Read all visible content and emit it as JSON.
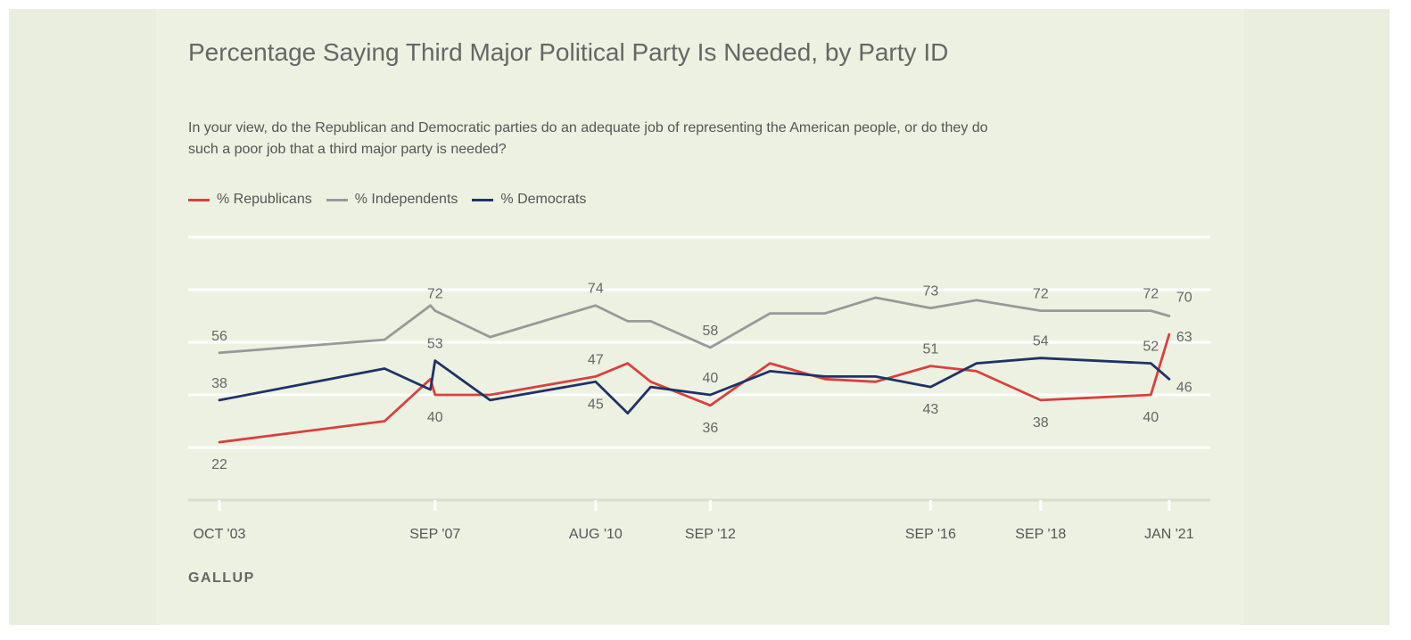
{
  "chart_data": {
    "type": "line",
    "title": "Percentage Saying Third Major Political Party Is Needed, by Party ID",
    "subtitle": "In your view, do the Republican and Democratic parties do an adequate job of representing the American people, or do they do such a poor job that a third major party is needed?",
    "source": "GALLUP",
    "ylim": [
      0,
      100
    ],
    "xlim": [
      "2003-10",
      "2021-02"
    ],
    "grid": true,
    "legend_position": "top-left",
    "x_ticks": [
      {
        "date": "2003-10",
        "label": "OCT '03"
      },
      {
        "date": "2007-09",
        "label": "SEP '07"
      },
      {
        "date": "2010-08",
        "label": "AUG '10"
      },
      {
        "date": "2012-09",
        "label": "SEP '12"
      },
      {
        "date": "2016-09",
        "label": "SEP '16"
      },
      {
        "date": "2018-09",
        "label": "SEP '18"
      },
      {
        "date": "2021-01",
        "label": "JAN '21"
      }
    ],
    "series": [
      {
        "name": "% Republicans",
        "color": "#d9403f",
        "points": [
          {
            "x": "2003-10",
            "y": 22
          },
          {
            "x": "2006-10",
            "y": 30
          },
          {
            "x": "2007-08",
            "y": 46
          },
          {
            "x": "2007-09",
            "y": 40
          },
          {
            "x": "2008-09",
            "y": 40
          },
          {
            "x": "2010-08",
            "y": 47
          },
          {
            "x": "2011-03",
            "y": 52
          },
          {
            "x": "2011-08",
            "y": 45
          },
          {
            "x": "2012-09",
            "y": 36
          },
          {
            "x": "2013-10",
            "y": 52
          },
          {
            "x": "2014-10",
            "y": 46
          },
          {
            "x": "2015-09",
            "y": 45
          },
          {
            "x": "2016-09",
            "y": 51
          },
          {
            "x": "2017-07",
            "y": 49
          },
          {
            "x": "2018-09",
            "y": 38
          },
          {
            "x": "2020-09",
            "y": 40
          },
          {
            "x": "2021-01",
            "y": 63
          }
        ]
      },
      {
        "name": "% Independents",
        "color": "#999999",
        "points": [
          {
            "x": "2003-10",
            "y": 56
          },
          {
            "x": "2006-10",
            "y": 61
          },
          {
            "x": "2007-08",
            "y": 74
          },
          {
            "x": "2007-09",
            "y": 72
          },
          {
            "x": "2008-09",
            "y": 62
          },
          {
            "x": "2010-08",
            "y": 74
          },
          {
            "x": "2011-03",
            "y": 68
          },
          {
            "x": "2011-08",
            "y": 68
          },
          {
            "x": "2012-09",
            "y": 58
          },
          {
            "x": "2013-10",
            "y": 71
          },
          {
            "x": "2014-10",
            "y": 71
          },
          {
            "x": "2015-09",
            "y": 77
          },
          {
            "x": "2016-09",
            "y": 73
          },
          {
            "x": "2017-07",
            "y": 76
          },
          {
            "x": "2018-09",
            "y": 72
          },
          {
            "x": "2020-09",
            "y": 72
          },
          {
            "x": "2021-01",
            "y": 70
          }
        ]
      },
      {
        "name": "% Democrats",
        "color": "#1e3366",
        "points": [
          {
            "x": "2003-10",
            "y": 38
          },
          {
            "x": "2006-10",
            "y": 50
          },
          {
            "x": "2007-08",
            "y": 42
          },
          {
            "x": "2007-09",
            "y": 53
          },
          {
            "x": "2008-09",
            "y": 38
          },
          {
            "x": "2010-08",
            "y": 45
          },
          {
            "x": "2011-03",
            "y": 33
          },
          {
            "x": "2011-08",
            "y": 43
          },
          {
            "x": "2012-09",
            "y": 40
          },
          {
            "x": "2013-10",
            "y": 49
          },
          {
            "x": "2014-10",
            "y": 47
          },
          {
            "x": "2015-09",
            "y": 47
          },
          {
            "x": "2016-09",
            "y": 43
          },
          {
            "x": "2017-07",
            "y": 52
          },
          {
            "x": "2018-09",
            "y": 54
          },
          {
            "x": "2020-09",
            "y": 52
          },
          {
            "x": "2021-01",
            "y": 46
          }
        ]
      }
    ],
    "data_labels": [
      {
        "text": "22",
        "series": 0,
        "x": "2003-10",
        "y": 22,
        "pos": "below"
      },
      {
        "text": "40",
        "series": 0,
        "x": "2007-09",
        "y": 40,
        "pos": "below"
      },
      {
        "text": "47",
        "series": 0,
        "x": "2010-08",
        "y": 47,
        "pos": "above"
      },
      {
        "text": "36",
        "series": 0,
        "x": "2012-09",
        "y": 36,
        "pos": "below"
      },
      {
        "text": "51",
        "series": 0,
        "x": "2016-09",
        "y": 51,
        "pos": "above"
      },
      {
        "text": "38",
        "series": 0,
        "x": "2018-09",
        "y": 38,
        "pos": "below"
      },
      {
        "text": "40",
        "series": 0,
        "x": "2020-09",
        "y": 40,
        "pos": "below"
      },
      {
        "text": "63",
        "series": 0,
        "x": "2021-01",
        "y": 63,
        "pos": "right"
      },
      {
        "text": "56",
        "series": 1,
        "x": "2003-10",
        "y": 56,
        "pos": "above"
      },
      {
        "text": "72",
        "series": 1,
        "x": "2007-09",
        "y": 72,
        "pos": "above"
      },
      {
        "text": "74",
        "series": 1,
        "x": "2010-08",
        "y": 74,
        "pos": "above"
      },
      {
        "text": "58",
        "series": 1,
        "x": "2012-09",
        "y": 58,
        "pos": "above"
      },
      {
        "text": "73",
        "series": 1,
        "x": "2016-09",
        "y": 73,
        "pos": "above"
      },
      {
        "text": "72",
        "series": 1,
        "x": "2018-09",
        "y": 72,
        "pos": "above"
      },
      {
        "text": "72",
        "series": 1,
        "x": "2020-09",
        "y": 72,
        "pos": "above"
      },
      {
        "text": "70",
        "series": 1,
        "x": "2021-01",
        "y": 70,
        "pos": "right-up"
      },
      {
        "text": "38",
        "series": 2,
        "x": "2003-10",
        "y": 38,
        "pos": "above"
      },
      {
        "text": "53",
        "series": 2,
        "x": "2007-09",
        "y": 53,
        "pos": "above"
      },
      {
        "text": "45",
        "series": 2,
        "x": "2010-08",
        "y": 45,
        "pos": "below"
      },
      {
        "text": "40",
        "series": 2,
        "x": "2012-09",
        "y": 40,
        "pos": "above"
      },
      {
        "text": "43",
        "series": 2,
        "x": "2016-09",
        "y": 43,
        "pos": "below"
      },
      {
        "text": "54",
        "series": 2,
        "x": "2018-09",
        "y": 54,
        "pos": "above"
      },
      {
        "text": "52",
        "series": 2,
        "x": "2020-09",
        "y": 52,
        "pos": "above"
      },
      {
        "text": "46",
        "series": 2,
        "x": "2021-01",
        "y": 46,
        "pos": "right-down"
      }
    ]
  }
}
